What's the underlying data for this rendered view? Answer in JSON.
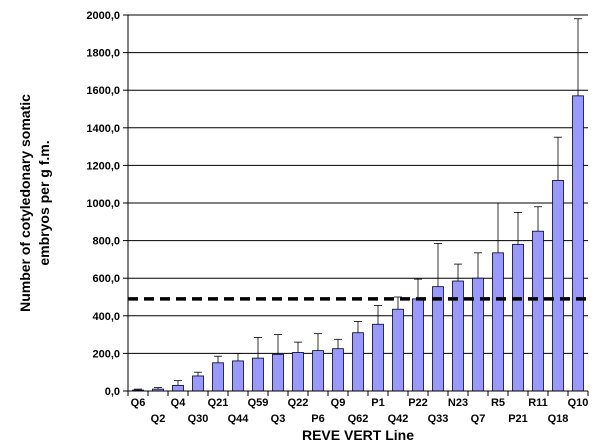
{
  "chart_data": {
    "type": "bar",
    "title": "",
    "xlabel": "REVE VERT Line",
    "ylabel_lines": [
      "Number of cotyledonary somatic",
      "embryos per g f.m."
    ],
    "ylim": [
      0,
      2000
    ],
    "yticks": [
      0,
      200,
      400,
      600,
      800,
      1000,
      1200,
      1400,
      1600,
      1800,
      2000
    ],
    "ytick_labels": [
      "0,0",
      "200,0",
      "400,0",
      "600,0",
      "800,0",
      "1000,0",
      "1200,0",
      "1400,0",
      "1600,0",
      "1800,0",
      "2000,0"
    ],
    "grid": true,
    "bar_color": "#9999ff",
    "categories": [
      "Q6",
      "Q2",
      "Q4",
      "Q30",
      "Q21",
      "Q44",
      "Q59",
      "Q3",
      "Q22",
      "P6",
      "Q9",
      "Q62",
      "P1",
      "Q42",
      "P22",
      "Q33",
      "N23",
      "Q7",
      "R5",
      "P21",
      "R11",
      "Q18",
      "Q10"
    ],
    "values": [
      5,
      10,
      30,
      80,
      150,
      160,
      175,
      195,
      205,
      215,
      225,
      310,
      355,
      435,
      490,
      555,
      585,
      600,
      735,
      780,
      850,
      1120,
      1570
    ],
    "error_upper": [
      10,
      18,
      55,
      100,
      185,
      200,
      285,
      300,
      260,
      305,
      275,
      370,
      455,
      500,
      595,
      785,
      675,
      735,
      1000,
      950,
      980,
      1350,
      1980
    ],
    "reference_line": 490
  }
}
